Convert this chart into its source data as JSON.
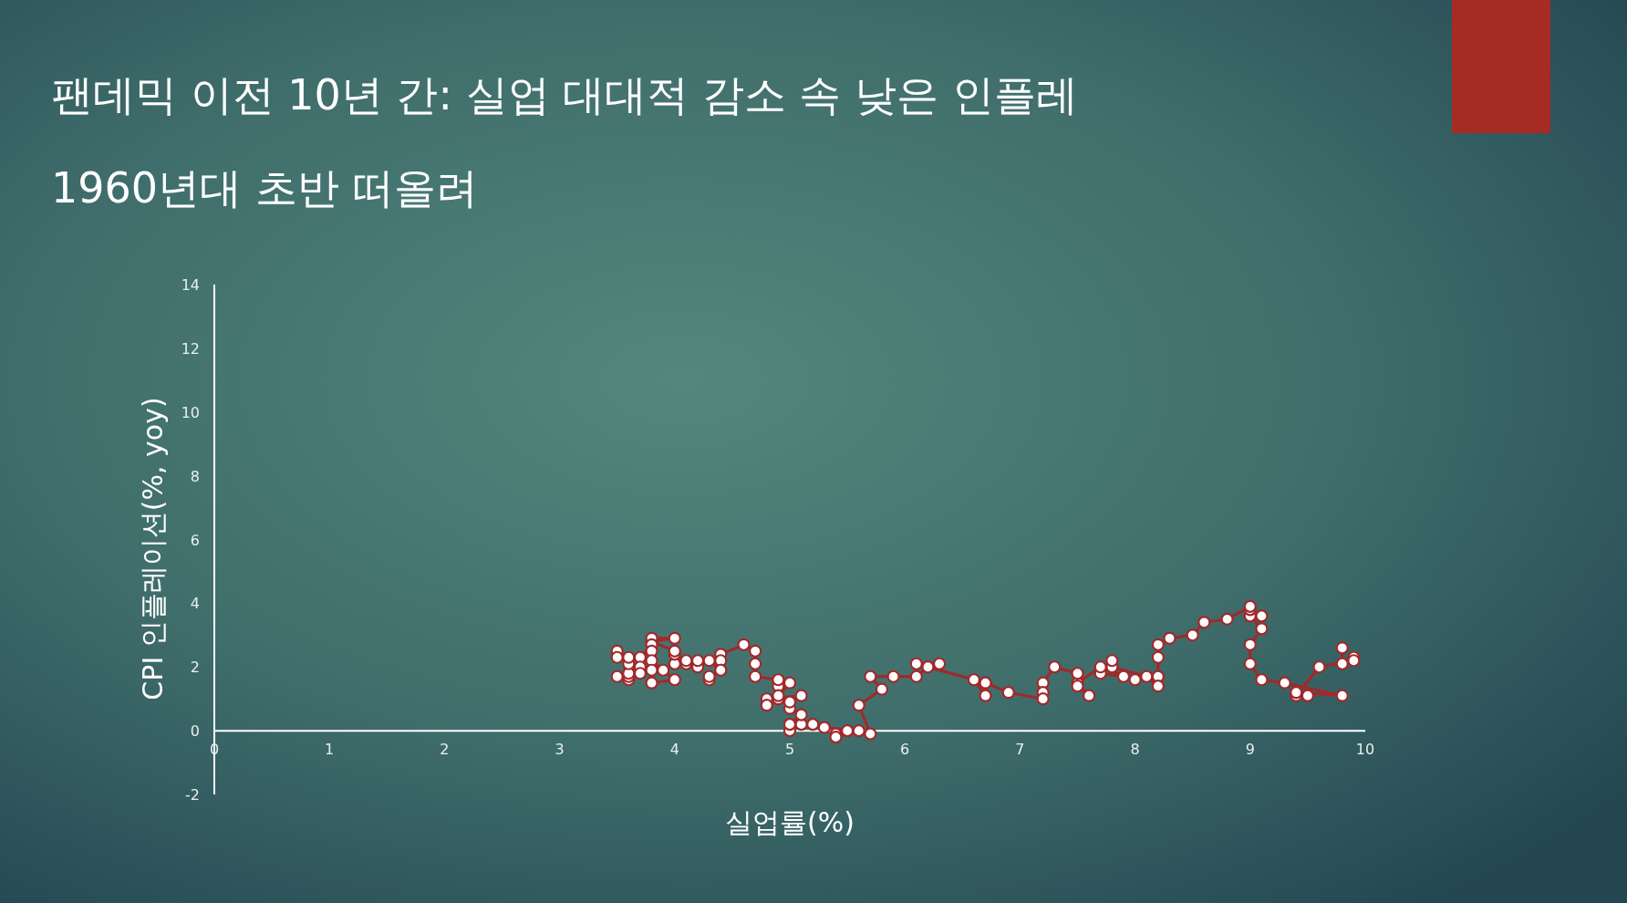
{
  "chart_data": {
    "type": "line",
    "title": "팬데믹 이전 10년 간: 실업 대대적 감소 속 낮은 인플레",
    "subtitle": "1960년대 초반 떠올려",
    "xlabel": "실업률(%)",
    "ylabel": "CPI 인플레이션(%, yoy)",
    "xlim": [
      0,
      10
    ],
    "xticks": [
      0,
      1,
      2,
      3,
      4,
      5,
      6,
      7,
      8,
      9,
      10
    ],
    "ylim": [
      -2,
      14
    ],
    "yticks": [
      -2,
      0,
      2,
      4,
      6,
      8,
      10,
      12,
      14
    ],
    "marker": "circle",
    "series": [
      {
        "color": "#a3282a",
        "x": [
          9.8,
          9.8,
          9.9,
          9.9,
          9.6,
          9.4,
          9.4,
          9.5,
          9.5,
          9.4,
          9.8,
          9.3,
          9.1,
          9.0,
          9.0,
          9.1,
          9.0,
          9.1,
          9.0,
          9.0,
          9.0,
          8.8,
          8.6,
          8.5,
          8.3,
          8.3,
          8.2,
          8.2,
          8.2,
          8.2,
          8.2,
          8.1,
          7.8,
          7.8,
          7.7,
          7.9,
          8.0,
          7.7,
          7.5,
          7.6,
          7.5,
          7.5,
          7.3,
          7.2,
          7.2,
          7.2,
          6.9,
          6.7,
          6.6,
          6.7,
          6.7,
          6.2,
          6.3,
          6.1,
          6.2,
          6.1,
          5.9,
          5.7,
          5.8,
          5.6,
          5.7,
          5.5,
          5.4,
          5.4,
          5.6,
          5.3,
          5.2,
          5.1,
          5.0,
          5.0,
          5.1,
          5.0,
          4.9,
          4.9,
          5.0,
          5.1,
          4.8,
          4.9,
          4.8,
          4.9,
          5.0,
          4.9,
          4.7,
          4.7,
          4.7,
          4.6,
          4.4,
          4.4,
          4.4,
          4.3,
          4.3,
          4.4,
          4.3,
          4.2,
          4.2,
          4.1,
          4.0,
          4.1,
          4.0,
          4.0,
          3.8,
          4.0,
          3.8,
          3.8,
          3.7,
          3.8,
          3.8,
          3.9,
          4.0,
          3.8,
          3.8,
          3.7,
          3.6,
          3.6,
          3.7,
          3.6,
          3.5,
          3.6,
          3.6,
          3.6,
          3.5,
          3.5
        ],
        "values": [
          2.6,
          2.1,
          2.3,
          2.2,
          2.0,
          1.1,
          1.2,
          1.1,
          1.1,
          1.2,
          1.1,
          1.5,
          1.6,
          2.1,
          2.7,
          3.2,
          3.6,
          3.6,
          3.6,
          3.8,
          3.9,
          3.5,
          3.4,
          3.0,
          2.9,
          2.9,
          2.7,
          2.3,
          1.7,
          1.7,
          1.4,
          1.7,
          2.0,
          2.2,
          1.8,
          1.7,
          1.6,
          2.0,
          1.5,
          1.1,
          1.4,
          1.8,
          2.0,
          1.5,
          1.2,
          1.0,
          1.2,
          1.5,
          1.6,
          1.1,
          1.5,
          2.0,
          2.1,
          2.1,
          2.0,
          1.7,
          1.7,
          1.7,
          1.3,
          0.8,
          -0.1,
          0.0,
          -0.1,
          -0.2,
          0.0,
          0.1,
          0.2,
          0.2,
          0.0,
          0.2,
          0.5,
          0.7,
          1.4,
          1.0,
          0.9,
          1.1,
          1.0,
          1.0,
          0.8,
          1.1,
          1.5,
          1.6,
          1.7,
          2.1,
          2.5,
          2.7,
          2.4,
          2.2,
          1.9,
          1.6,
          1.7,
          1.9,
          2.2,
          2.0,
          2.2,
          2.1,
          2.1,
          2.2,
          2.4,
          2.5,
          2.8,
          2.9,
          2.9,
          2.7,
          2.3,
          2.5,
          2.2,
          1.9,
          1.6,
          1.5,
          1.9,
          2.0,
          1.8,
          1.6,
          1.8,
          1.7,
          1.7,
          1.8,
          2.1,
          2.3,
          2.5,
          2.3
        ]
      }
    ]
  }
}
